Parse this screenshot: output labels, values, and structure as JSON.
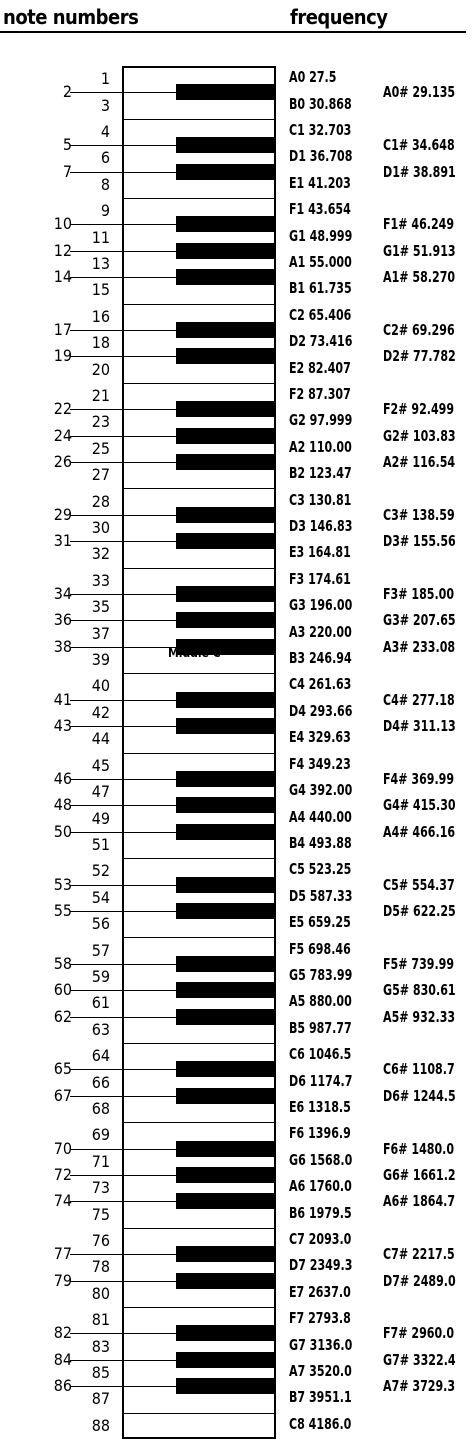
{
  "header": {
    "left_title": "note numbers",
    "right_title": "frequency",
    "middle_c_label": "Middle C"
  },
  "white_keys": [
    {
      "num": "1",
      "freq": "A0  27.5"
    },
    {
      "num": "3",
      "freq": "B0  30.868"
    },
    {
      "num": "4",
      "freq": "C1  32.703"
    },
    {
      "num": "6",
      "freq": "D1  36.708"
    },
    {
      "num": "8",
      "freq": "E1  41.203"
    },
    {
      "num": "9",
      "freq": "F1  43.654"
    },
    {
      "num": "11",
      "freq": "G1  48.999"
    },
    {
      "num": "13",
      "freq": "A1  55.000"
    },
    {
      "num": "15",
      "freq": "B1  61.735"
    },
    {
      "num": "16",
      "freq": "C2  65.406"
    },
    {
      "num": "18",
      "freq": "D2  73.416"
    },
    {
      "num": "20",
      "freq": "E2  82.407"
    },
    {
      "num": "21",
      "freq": "F2  87.307"
    },
    {
      "num": "23",
      "freq": "G2  97.999"
    },
    {
      "num": "25",
      "freq": "A2  110.00"
    },
    {
      "num": "27",
      "freq": "B2  123.47"
    },
    {
      "num": "28",
      "freq": "C3  130.81"
    },
    {
      "num": "30",
      "freq": "D3  146.83"
    },
    {
      "num": "32",
      "freq": "E3  164.81"
    },
    {
      "num": "33",
      "freq": "F3  174.61"
    },
    {
      "num": "35",
      "freq": "G3  196.00"
    },
    {
      "num": "37",
      "freq": "A3  220.00"
    },
    {
      "num": "39",
      "freq": "B3  246.94"
    },
    {
      "num": "40",
      "freq": "C4  261.63"
    },
    {
      "num": "42",
      "freq": "D4  293.66"
    },
    {
      "num": "44",
      "freq": "E4  329.63"
    },
    {
      "num": "45",
      "freq": "F4  349.23"
    },
    {
      "num": "47",
      "freq": "G4  392.00"
    },
    {
      "num": "49",
      "freq": "A4  440.00"
    },
    {
      "num": "51",
      "freq": "B4  493.88"
    },
    {
      "num": "52",
      "freq": "C5  523.25"
    },
    {
      "num": "54",
      "freq": "D5  587.33"
    },
    {
      "num": "56",
      "freq": "E5  659.25"
    },
    {
      "num": "57",
      "freq": "F5  698.46"
    },
    {
      "num": "59",
      "freq": "G5  783.99"
    },
    {
      "num": "61",
      "freq": "A5  880.00"
    },
    {
      "num": "63",
      "freq": "B5  987.77"
    },
    {
      "num": "64",
      "freq": "C6  1046.5"
    },
    {
      "num": "66",
      "freq": "D6  1174.7"
    },
    {
      "num": "68",
      "freq": "E6  1318.5"
    },
    {
      "num": "69",
      "freq": "F6  1396.9"
    },
    {
      "num": "71",
      "freq": "G6  1568.0"
    },
    {
      "num": "73",
      "freq": "A6  1760.0"
    },
    {
      "num": "75",
      "freq": "B6  1979.5"
    },
    {
      "num": "76",
      "freq": "C7  2093.0"
    },
    {
      "num": "78",
      "freq": "D7 2349.3"
    },
    {
      "num": "80",
      "freq": "E7  2637.0"
    },
    {
      "num": "81",
      "freq": "F7  2793.8"
    },
    {
      "num": "83",
      "freq": "G7  3136.0"
    },
    {
      "num": "85",
      "freq": "A7  3520.0"
    },
    {
      "num": "87",
      "freq": "B7  3951.1"
    },
    {
      "num": "88",
      "freq": "C8  4186.0"
    }
  ],
  "black_keys": [
    {
      "num": "2",
      "freq": "A0#  29.135"
    },
    {
      "num": "5",
      "freq": "C1#  34.648"
    },
    {
      "num": "7",
      "freq": "D1#  38.891"
    },
    {
      "num": "10",
      "freq": "F1#  46.249"
    },
    {
      "num": "12",
      "freq": "G1#  51.913"
    },
    {
      "num": "14",
      "freq": "A1#  58.270"
    },
    {
      "num": "17",
      "freq": "C2#  69.296"
    },
    {
      "num": "19",
      "freq": "D2#  77.782"
    },
    {
      "num": "22",
      "freq": "F2#  92.499"
    },
    {
      "num": "24",
      "freq": "G2#  103.83"
    },
    {
      "num": "26",
      "freq": "A2#  116.54"
    },
    {
      "num": "29",
      "freq": "C3#  138.59"
    },
    {
      "num": "31",
      "freq": "D3#  155.56"
    },
    {
      "num": "34",
      "freq": "F3#  185.00"
    },
    {
      "num": "36",
      "freq": "G3#  207.65"
    },
    {
      "num": "38",
      "freq": "A3#  233.08"
    },
    {
      "num": "41",
      "freq": "C4#  277.18"
    },
    {
      "num": "43",
      "freq": "D4#  311.13"
    },
    {
      "num": "46",
      "freq": "F4#  369.99"
    },
    {
      "num": "48",
      "freq": "G4#  415.30"
    },
    {
      "num": "50",
      "freq": "A4#  466.16"
    },
    {
      "num": "53",
      "freq": "C5#  554.37"
    },
    {
      "num": "55",
      "freq": "D5#  622.25"
    },
    {
      "num": "58",
      "freq": "F5#  739.99"
    },
    {
      "num": "60",
      "freq": "G5#  830.61"
    },
    {
      "num": "62",
      "freq": "A5#  932.33"
    },
    {
      "num": "65",
      "freq": "C6#  1108.7"
    },
    {
      "num": "67",
      "freq": "D6#  1244.5"
    },
    {
      "num": "70",
      "freq": "F6#  1480.0"
    },
    {
      "num": "72",
      "freq": "G6#  1661.2"
    },
    {
      "num": "74",
      "freq": "A6#  1864.7"
    },
    {
      "num": "77",
      "freq": "C7#  2217.5"
    },
    {
      "num": "79",
      "freq": "D7#  2489.0"
    },
    {
      "num": "82",
      "freq": "F7#  2960.0"
    },
    {
      "num": "84",
      "freq": "G7#  3322.4"
    },
    {
      "num": "86",
      "freq": "A7#  3729.3"
    }
  ]
}
